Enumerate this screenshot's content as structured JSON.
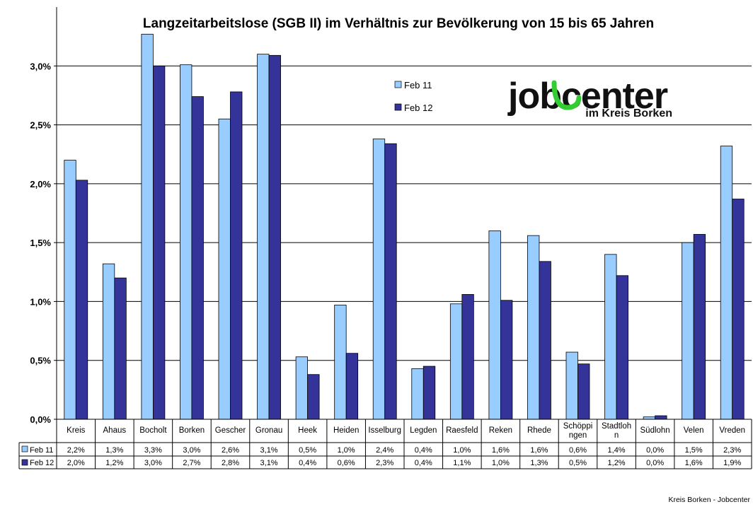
{
  "chart_data": {
    "type": "bar",
    "title": "Langzeitarbeitslose (SGB II) im Verhältnis zur Bevölkerung von 15 bis 65 Jahren",
    "xlabel": "",
    "ylabel": "",
    "ylim": [
      0,
      3.5
    ],
    "yticks": [
      {
        "value": 0.0,
        "label": "0,0%"
      },
      {
        "value": 0.5,
        "label": "0,5%"
      },
      {
        "value": 1.0,
        "label": "1,0%"
      },
      {
        "value": 1.5,
        "label": "1,5%"
      },
      {
        "value": 2.0,
        "label": "2,0%"
      },
      {
        "value": 2.5,
        "label": "2,5%"
      },
      {
        "value": 3.0,
        "label": "3,0%"
      }
    ],
    "grid": true,
    "legend_position": "top-center",
    "categories": [
      [
        "Kreis"
      ],
      [
        "Ahaus"
      ],
      [
        "Bocholt"
      ],
      [
        "Borken"
      ],
      [
        "Gescher"
      ],
      [
        "Gronau"
      ],
      [
        "Heek"
      ],
      [
        "Heiden"
      ],
      [
        "Isselburg"
      ],
      [
        "Legden"
      ],
      [
        "Raesfeld"
      ],
      [
        "Reken"
      ],
      [
        "Rhede"
      ],
      [
        "Schöppi",
        "ngen"
      ],
      [
        "Stadtloh",
        "n"
      ],
      [
        "Südlohn"
      ],
      [
        "Velen"
      ],
      [
        "Vreden"
      ]
    ],
    "series": [
      {
        "name": "Feb 11",
        "color": "#99ccff",
        "values": [
          2.2,
          1.32,
          3.27,
          3.01,
          2.55,
          3.1,
          0.53,
          0.97,
          2.38,
          0.43,
          0.98,
          1.6,
          1.56,
          0.57,
          1.4,
          0.02,
          1.5,
          2.32
        ],
        "labels": [
          "2,2%",
          "1,3%",
          "3,3%",
          "3,0%",
          "2,6%",
          "3,1%",
          "0,5%",
          "1,0%",
          "2,4%",
          "0,4%",
          "1,0%",
          "1,6%",
          "1,6%",
          "0,6%",
          "1,4%",
          "0,0%",
          "1,5%",
          "2,3%"
        ]
      },
      {
        "name": "Feb 12",
        "color": "#333399",
        "values": [
          2.03,
          1.2,
          3.0,
          2.74,
          2.78,
          3.09,
          0.38,
          0.56,
          2.34,
          0.45,
          1.06,
          1.01,
          1.34,
          0.47,
          1.22,
          0.03,
          1.57,
          1.87
        ],
        "labels": [
          "2,0%",
          "1,2%",
          "3,0%",
          "2,7%",
          "2,8%",
          "3,1%",
          "0,4%",
          "0,6%",
          "2,3%",
          "0,4%",
          "1,1%",
          "1,0%",
          "1,3%",
          "0,5%",
          "1,2%",
          "0,0%",
          "1,6%",
          "1,9%"
        ]
      }
    ]
  },
  "logo": {
    "text": "jobcenter",
    "subtitle": "im Kreis Borken"
  },
  "footer": {
    "text": "Kreis Borken - Jobcenter"
  },
  "colors": {
    "logo_black": "#111111",
    "logo_green": "#33cc33",
    "grid": "#000000"
  }
}
